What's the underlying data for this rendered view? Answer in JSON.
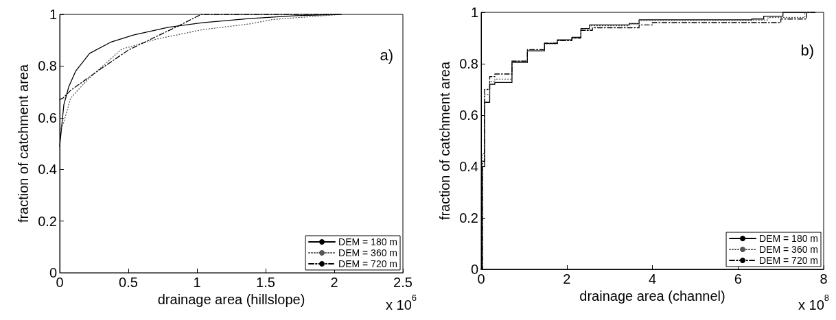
{
  "chart_data": [
    {
      "type": "line",
      "xlabel": "drainage area (hillslope)",
      "ylabel": "fraction of catchment area",
      "annotations": [
        "a)",
        "x 10$^{6}$"
      ],
      "xlim": [
        0,
        2.5
      ],
      "xticks": [
        0,
        0.5,
        1,
        1.5,
        2,
        2.5
      ],
      "ylim": [
        0,
        1
      ],
      "yticks": [
        0,
        0.2,
        0.4,
        0.6,
        0.8,
        1
      ],
      "grid": false,
      "legend": "bottom right",
      "marker": "none",
      "series": [
        {
          "name": "DEM = 180 m",
          "color": "#000000",
          "line_style": "solid",
          "x": [
            0,
            0.007,
            0.03,
            0.066,
            0.116,
            0.218,
            0.37,
            0.537,
            0.79,
            1.04,
            1.38,
            1.72,
            2.05
          ],
          "values": [
            0.49,
            0.527,
            0.65,
            0.72,
            0.78,
            0.849,
            0.892,
            0.92,
            0.95,
            0.968,
            0.984,
            0.995,
            1
          ]
        },
        {
          "name": "DEM = 360 m",
          "color": "#555555",
          "line_style": "dotted",
          "x": [
            0,
            0.024,
            0.08,
            0.2,
            0.45,
            0.71,
            1.04,
            1.38,
            1.55,
            2.05
          ],
          "values": [
            0.55,
            0.573,
            0.676,
            0.746,
            0.865,
            0.905,
            0.941,
            0.963,
            0.98,
            1
          ]
        },
        {
          "name": "DEM = 720 m",
          "color": "#000000",
          "line_style": "dashed",
          "x": [
            0,
            0.024,
            0.08,
            0.28,
            0.5,
            0.875,
            1.03,
            2.05
          ],
          "values": [
            0.67,
            0.676,
            0.706,
            0.782,
            0.862,
            0.958,
            1,
            1
          ]
        }
      ]
    },
    {
      "type": "step",
      "xlabel": "drainage area (channel)",
      "ylabel": "fraction of catchment area",
      "annotations": [
        "b)",
        "x 10$^{8}$"
      ],
      "xlim": [
        0,
        8
      ],
      "xticks": [
        0,
        2,
        4,
        6,
        8
      ],
      "ylim": [
        0,
        1
      ],
      "yticks": [
        0,
        0.2,
        0.4,
        0.6,
        0.8,
        1
      ],
      "grid": false,
      "legend": "bottom right",
      "marker": "none",
      "series": [
        {
          "name": "DEM = 180 m",
          "color": "#000000",
          "line_style": "solid",
          "x": [
            0,
            0.03,
            0.08,
            0.2,
            0.32,
            0.72,
            1.08,
            1.48,
            1.78,
            2.12,
            2.33,
            2.53,
            3.46,
            3.69,
            6.32,
            6.6,
            7.05,
            7.8
          ],
          "values": [
            0,
            0.4,
            0.65,
            0.72,
            0.727,
            0.805,
            0.85,
            0.879,
            0.893,
            0.903,
            0.937,
            0.951,
            0.956,
            0.971,
            0.974,
            0.985,
            1,
            1
          ]
        },
        {
          "name": "DEM = 360 m",
          "color": "#555555",
          "line_style": "dotted",
          "x": [
            0,
            0.03,
            0.08,
            0.2,
            0.32,
            0.72,
            1.08,
            1.48,
            1.78,
            2.12,
            2.33,
            2.53,
            3.46,
            3.69,
            6.32,
            6.7,
            7.56,
            7.8
          ],
          "values": [
            0,
            0.45,
            0.68,
            0.73,
            0.74,
            0.81,
            0.85,
            0.877,
            0.89,
            0.9,
            0.93,
            0.948,
            0.955,
            0.968,
            0.97,
            0.98,
            1,
            1
          ]
        },
        {
          "name": "DEM = 720 m",
          "color": "#000000",
          "line_style": "dashed",
          "x": [
            0,
            0.03,
            0.08,
            0.2,
            0.32,
            0.72,
            1.08,
            1.48,
            1.78,
            2.12,
            2.33,
            2.6,
            3.69,
            4.0,
            6.6,
            7.0,
            7.6,
            7.8
          ],
          "values": [
            0,
            0.42,
            0.7,
            0.75,
            0.76,
            0.81,
            0.855,
            0.88,
            0.89,
            0.9,
            0.93,
            0.94,
            0.951,
            0.96,
            0.96,
            0.974,
            1,
            1
          ]
        }
      ]
    }
  ]
}
